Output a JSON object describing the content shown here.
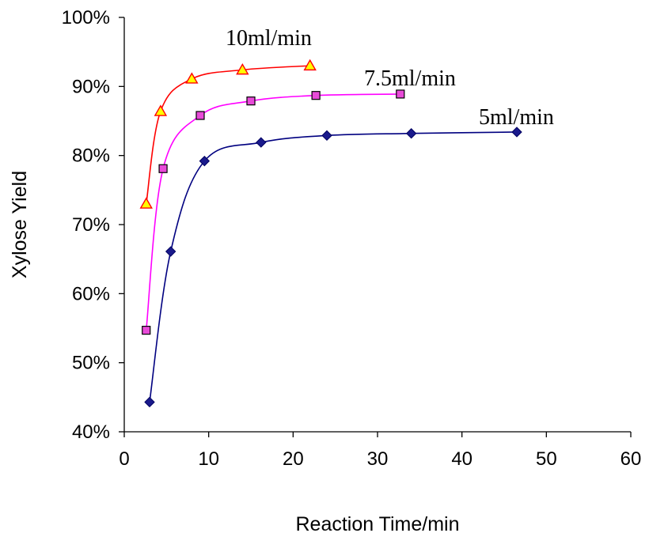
{
  "chart_data": {
    "type": "scatter",
    "title": "",
    "xlabel": "Reaction Time/min",
    "ylabel": "Xylose Yield",
    "xlim": [
      0,
      60
    ],
    "ylim": [
      0.4,
      1.0
    ],
    "x_ticks": [
      "0",
      "10",
      "20",
      "30",
      "40",
      "50",
      "60"
    ],
    "y_ticks": [
      "40%",
      "50%",
      "60%",
      "70%",
      "80%",
      "90%",
      "100%"
    ],
    "grid": false,
    "legend": "none",
    "smooth_lines": true,
    "series": [
      {
        "name": "5ml/min",
        "color": "#000080",
        "marker": "diamond",
        "marker_fill": "#1a1a8c",
        "x": [
          3.0,
          5.5,
          9.5,
          16.2,
          24.0,
          34.0,
          46.5
        ],
        "y": [
          0.443,
          0.661,
          0.792,
          0.819,
          0.829,
          0.832,
          0.834
        ]
      },
      {
        "name": "7.5ml/min",
        "color": "#ff00ff",
        "marker": "square",
        "marker_fill": "#e84ad8",
        "x": [
          2.6,
          4.6,
          9.0,
          15.0,
          22.7,
          32.7
        ],
        "y": [
          0.547,
          0.781,
          0.858,
          0.879,
          0.887,
          0.889
        ]
      },
      {
        "name": "10ml/min",
        "color": "#ff0000",
        "marker": "triangle",
        "marker_fill": "#ffff00",
        "x": [
          2.6,
          4.3,
          8.0,
          14.0,
          22.0
        ],
        "y": [
          0.73,
          0.864,
          0.911,
          0.924,
          0.93
        ]
      }
    ]
  }
}
